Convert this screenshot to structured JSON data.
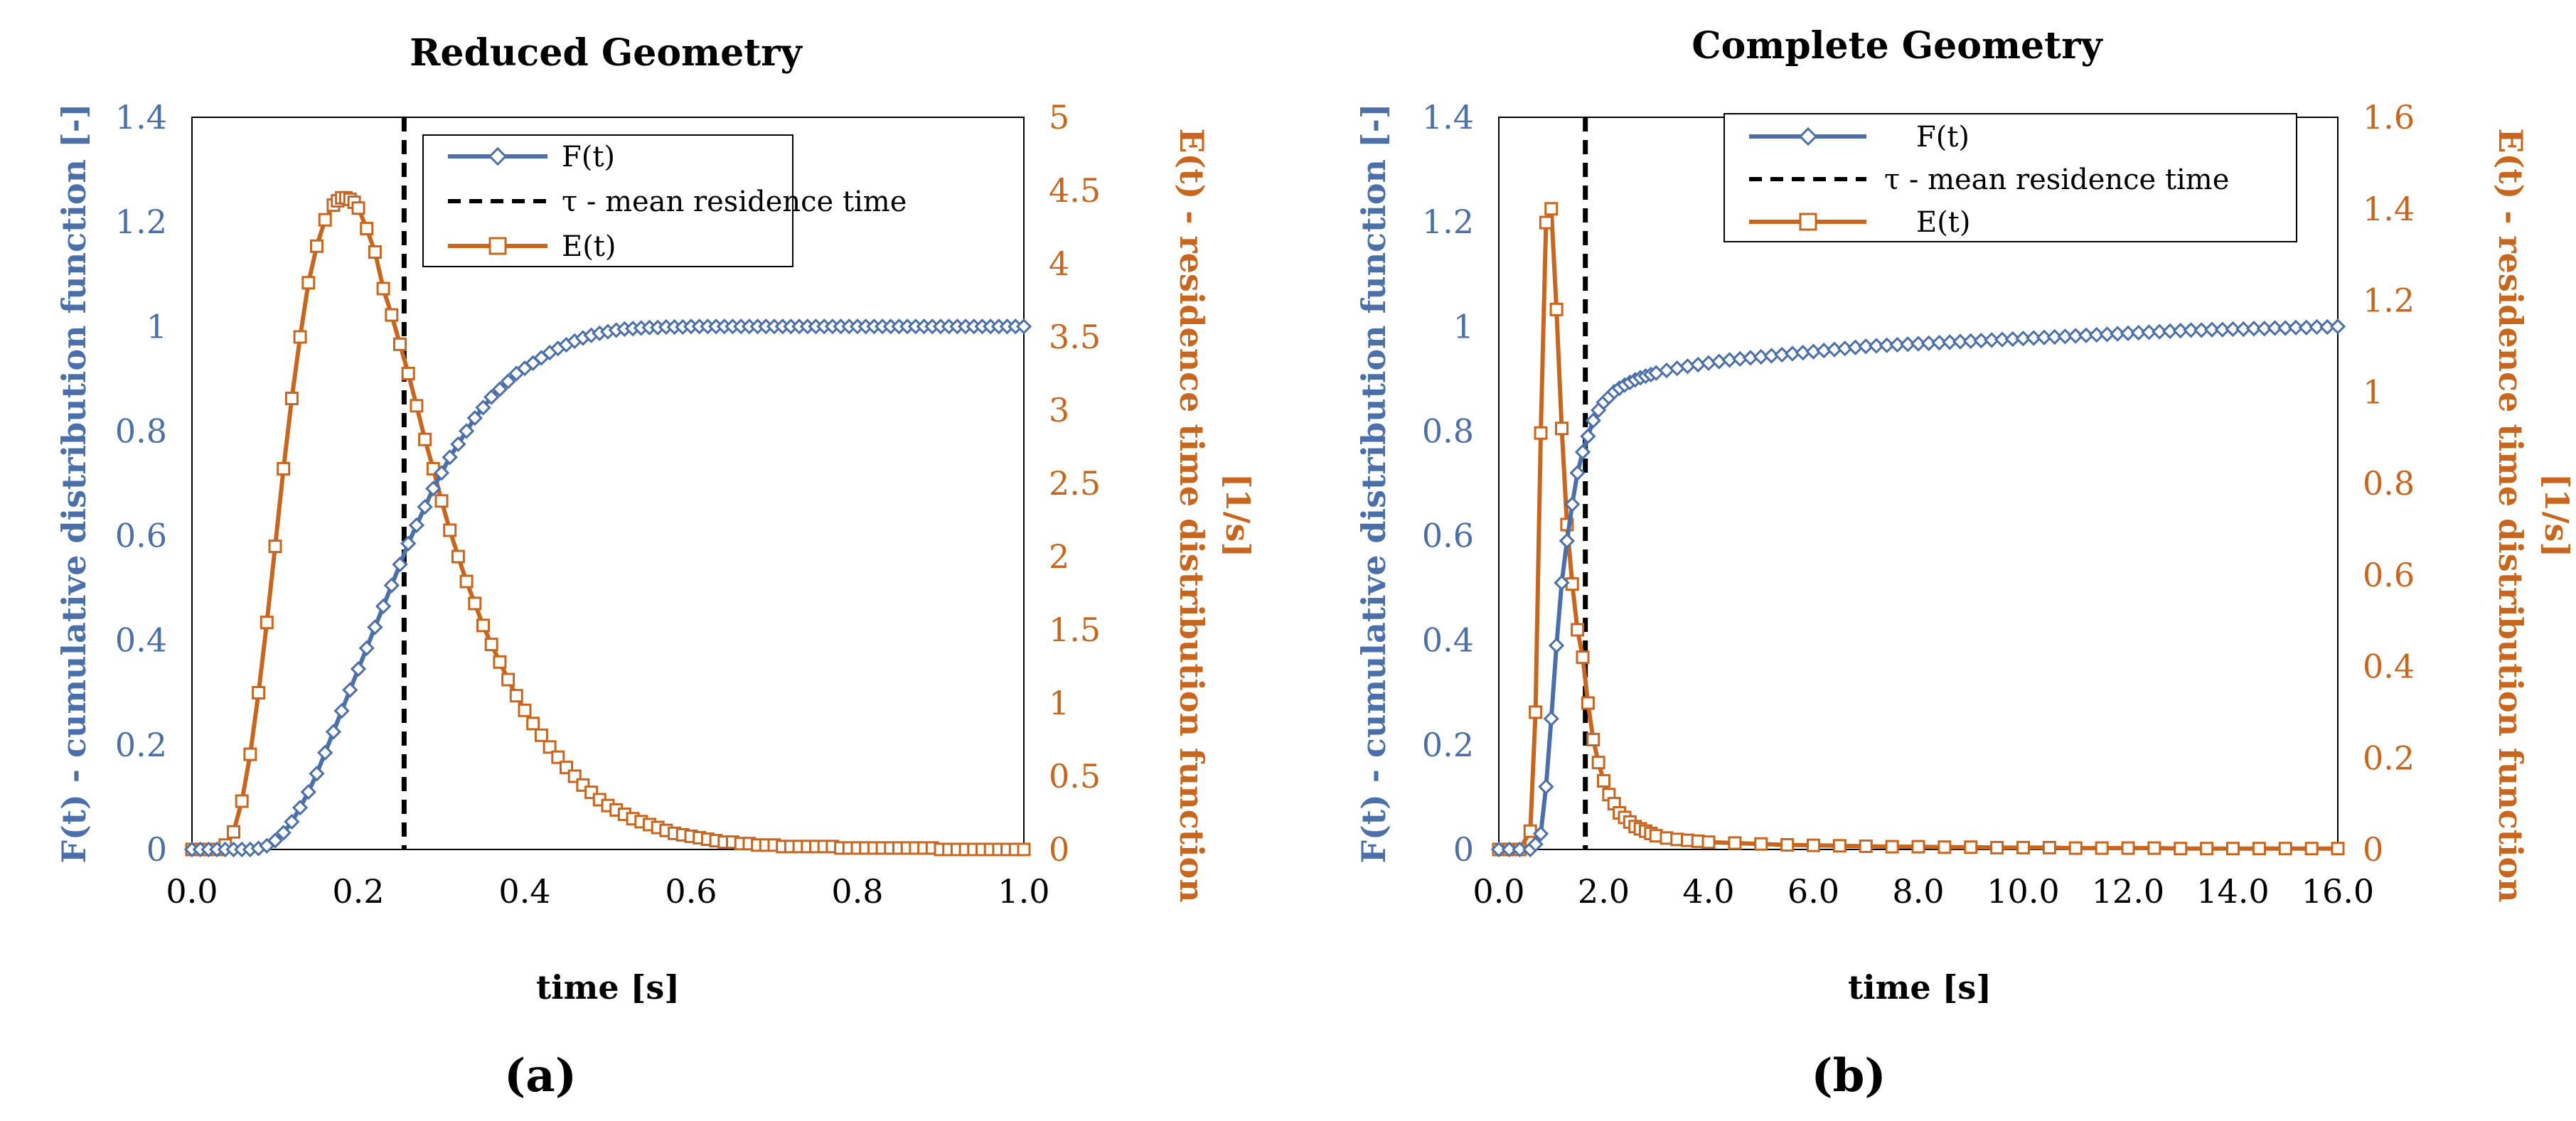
{
  "colors": {
    "f_series": "#4B6FA8",
    "e_series": "#C8661E",
    "tau_line": "#000000"
  },
  "chart_data": [
    {
      "type": "line",
      "panel_label": "(a)",
      "title": "Reduced Geometry",
      "xlabel": "time [s]",
      "ylabel_left": "F(t) - cumulative distribution function [-]",
      "ylabel_right_line1": "E(t) - residence time distribution function",
      "ylabel_right_line2": "[1/s]",
      "xlim": [
        0,
        1
      ],
      "ylim_left": [
        0,
        1.4
      ],
      "ylim_right": [
        0,
        5
      ],
      "xticks": [
        0,
        0.2,
        0.4,
        0.6,
        0.8,
        1.0
      ],
      "xtick_labels": [
        "0.0",
        "0.2",
        "0.4",
        "0.6",
        "0.8",
        "1.0"
      ],
      "yticks_left": [
        0,
        0.2,
        0.4,
        0.6,
        0.8,
        1,
        1.2,
        1.4
      ],
      "ytick_labels_left": [
        "0",
        "0.2",
        "0.4",
        "0.6",
        "0.8",
        "1",
        "1.2",
        "1.4"
      ],
      "yticks_right": [
        0,
        0.5,
        1,
        1.5,
        2,
        2.5,
        3,
        3.5,
        4,
        4.5,
        5
      ],
      "ytick_labels_right": [
        "0",
        "0.5",
        "1",
        "1.5",
        "2",
        "2.5",
        "3",
        "3.5",
        "4",
        "4.5",
        "5"
      ],
      "tau": 0.255,
      "legend": [
        "F(t)",
        "τ - mean residence time",
        "E(t)"
      ],
      "series": [
        {
          "name": "F(t)",
          "axis": "left",
          "x": [
            0.0,
            0.01,
            0.02,
            0.03,
            0.04,
            0.05,
            0.06,
            0.07,
            0.08,
            0.09,
            0.1,
            0.11,
            0.12,
            0.13,
            0.14,
            0.15,
            0.16,
            0.17,
            0.18,
            0.19,
            0.2,
            0.21,
            0.22,
            0.23,
            0.24,
            0.25,
            0.26,
            0.27,
            0.28,
            0.29,
            0.3,
            0.31,
            0.32,
            0.33,
            0.34,
            0.35,
            0.36,
            0.37,
            0.38,
            0.39,
            0.4,
            0.41,
            0.42,
            0.43,
            0.44,
            0.45,
            0.46,
            0.47,
            0.48,
            0.49,
            0.5,
            0.51,
            0.52,
            0.53,
            0.54,
            0.55,
            0.56,
            0.57,
            0.58,
            0.59,
            0.6,
            0.61,
            0.62,
            0.63,
            0.64,
            0.65,
            0.66,
            0.67,
            0.68,
            0.69,
            0.7,
            0.71,
            0.72,
            0.73,
            0.74,
            0.75,
            0.76,
            0.77,
            0.78,
            0.79,
            0.8,
            0.81,
            0.82,
            0.83,
            0.84,
            0.85,
            0.86,
            0.87,
            0.88,
            0.89,
            0.9,
            0.91,
            0.92,
            0.93,
            0.94,
            0.95,
            0.96,
            0.97,
            0.98,
            0.99,
            1.0
          ],
          "y": [
            0.0,
            0.0,
            0.0,
            0.0,
            0.0,
            0.0,
            0.0,
            0.0,
            0.002,
            0.007,
            0.017,
            0.032,
            0.053,
            0.08,
            0.11,
            0.145,
            0.185,
            0.225,
            0.265,
            0.305,
            0.345,
            0.385,
            0.425,
            0.465,
            0.505,
            0.545,
            0.585,
            0.62,
            0.655,
            0.69,
            0.72,
            0.75,
            0.775,
            0.8,
            0.825,
            0.845,
            0.865,
            0.88,
            0.895,
            0.91,
            0.92,
            0.93,
            0.94,
            0.95,
            0.958,
            0.965,
            0.972,
            0.978,
            0.983,
            0.987,
            0.99,
            0.993,
            0.995,
            0.996,
            0.997,
            0.998,
            0.998,
            0.999,
            0.999,
            0.999,
            1.0,
            1.0,
            1.0,
            1.0,
            1.0,
            1.0,
            1.0,
            1.0,
            1.0,
            1.0,
            1.0,
            1.0,
            1.0,
            1.0,
            1.0,
            1.0,
            1.0,
            1.0,
            1.0,
            1.0,
            1.0,
            1.0,
            1.0,
            1.0,
            1.0,
            1.0,
            1.0,
            1.0,
            1.0,
            1.0,
            1.0,
            1.0,
            1.0,
            1.0,
            1.0,
            1.0,
            1.0,
            1.0,
            1.0,
            1.0,
            1.0
          ]
        },
        {
          "name": "E(t)",
          "axis": "right",
          "x": [
            0.0,
            0.01,
            0.02,
            0.03,
            0.04,
            0.05,
            0.06,
            0.07,
            0.08,
            0.09,
            0.1,
            0.11,
            0.12,
            0.13,
            0.14,
            0.15,
            0.16,
            0.17,
            0.175,
            0.18,
            0.185,
            0.19,
            0.195,
            0.2,
            0.21,
            0.22,
            0.23,
            0.24,
            0.25,
            0.26,
            0.27,
            0.28,
            0.29,
            0.3,
            0.31,
            0.32,
            0.33,
            0.34,
            0.35,
            0.36,
            0.37,
            0.38,
            0.39,
            0.4,
            0.41,
            0.42,
            0.43,
            0.44,
            0.45,
            0.46,
            0.47,
            0.48,
            0.49,
            0.5,
            0.51,
            0.52,
            0.53,
            0.54,
            0.55,
            0.56,
            0.57,
            0.58,
            0.59,
            0.6,
            0.61,
            0.62,
            0.63,
            0.64,
            0.65,
            0.66,
            0.67,
            0.68,
            0.69,
            0.7,
            0.71,
            0.72,
            0.73,
            0.74,
            0.75,
            0.76,
            0.77,
            0.78,
            0.79,
            0.8,
            0.81,
            0.82,
            0.83,
            0.84,
            0.85,
            0.86,
            0.87,
            0.88,
            0.89,
            0.9,
            0.91,
            0.92,
            0.93,
            0.94,
            0.95,
            0.96,
            0.97,
            0.98,
            0.99,
            1.0
          ],
          "y": [
            0.0,
            0.0,
            0.0,
            0.0,
            0.03,
            0.12,
            0.33,
            0.65,
            1.07,
            1.55,
            2.07,
            2.6,
            3.08,
            3.5,
            3.87,
            4.12,
            4.3,
            4.4,
            4.43,
            4.45,
            4.45,
            4.44,
            4.42,
            4.38,
            4.24,
            4.08,
            3.83,
            3.65,
            3.45,
            3.25,
            3.03,
            2.8,
            2.6,
            2.38,
            2.18,
            2.0,
            1.83,
            1.68,
            1.53,
            1.4,
            1.28,
            1.16,
            1.05,
            0.95,
            0.86,
            0.78,
            0.7,
            0.63,
            0.56,
            0.5,
            0.44,
            0.39,
            0.34,
            0.3,
            0.27,
            0.24,
            0.21,
            0.19,
            0.17,
            0.15,
            0.13,
            0.11,
            0.1,
            0.09,
            0.08,
            0.07,
            0.06,
            0.05,
            0.05,
            0.04,
            0.04,
            0.03,
            0.03,
            0.03,
            0.02,
            0.02,
            0.02,
            0.02,
            0.02,
            0.02,
            0.02,
            0.01,
            0.01,
            0.01,
            0.01,
            0.01,
            0.01,
            0.01,
            0.01,
            0.01,
            0.01,
            0.01,
            0.01,
            0.0,
            0.0,
            0.0,
            0.0,
            0.0,
            0.0,
            0.0,
            0.0,
            0.0,
            0.0,
            0.0
          ]
        }
      ]
    },
    {
      "type": "line",
      "panel_label": "(b)",
      "title": "Complete Geometry",
      "xlabel": "time [s]",
      "ylabel_left": "F(t) - cumulative distribution function [-]",
      "ylabel_right_line1": "E(t) - residence time distribution function",
      "ylabel_right_line2": "[1/s]",
      "xlim": [
        0,
        16
      ],
      "ylim_left": [
        0,
        1.4
      ],
      "ylim_right": [
        0,
        1.6
      ],
      "xticks": [
        0,
        2,
        4,
        6,
        8,
        10,
        12,
        14,
        16
      ],
      "xtick_labels": [
        "0.0",
        "2.0",
        "4.0",
        "6.0",
        "8.0",
        "10.0",
        "12.0",
        "14.0",
        "16.0"
      ],
      "yticks_left": [
        0,
        0.2,
        0.4,
        0.6,
        0.8,
        1,
        1.2,
        1.4
      ],
      "ytick_labels_left": [
        "0",
        "0.2",
        "0.4",
        "0.6",
        "0.8",
        "1",
        "1.2",
        "1.4"
      ],
      "yticks_right": [
        0,
        0.2,
        0.4,
        0.6,
        0.8,
        1,
        1.2,
        1.4,
        1.6
      ],
      "ytick_labels_right": [
        "0",
        "0.2",
        "0.4",
        "0.6",
        "0.8",
        "1",
        "1.2",
        "1.4",
        "1.6"
      ],
      "tau": 1.65,
      "legend": [
        "F(t)",
        "τ - mean residence time",
        "E(t)"
      ],
      "series": [
        {
          "name": "F(t)",
          "axis": "left",
          "x": [
            0.0,
            0.2,
            0.4,
            0.6,
            0.7,
            0.8,
            0.9,
            1.0,
            1.1,
            1.2,
            1.3,
            1.4,
            1.5,
            1.6,
            1.7,
            1.8,
            1.9,
            2.0,
            2.1,
            2.2,
            2.3,
            2.4,
            2.5,
            2.6,
            2.7,
            2.8,
            2.9,
            3.0,
            3.2,
            3.4,
            3.6,
            3.8,
            4.0,
            4.2,
            4.4,
            4.6,
            4.8,
            5.0,
            5.2,
            5.4,
            5.6,
            5.8,
            6.0,
            6.2,
            6.4,
            6.6,
            6.8,
            7.0,
            7.2,
            7.4,
            7.6,
            7.8,
            8.0,
            8.2,
            8.4,
            8.6,
            8.8,
            9.0,
            9.2,
            9.4,
            9.6,
            9.8,
            10.0,
            10.2,
            10.4,
            10.6,
            10.8,
            11.0,
            11.2,
            11.4,
            11.6,
            11.8,
            12.0,
            12.2,
            12.4,
            12.6,
            12.8,
            13.0,
            13.2,
            13.4,
            13.6,
            13.8,
            14.0,
            14.2,
            14.4,
            14.6,
            14.8,
            15.0,
            15.2,
            15.4,
            15.6,
            15.8,
            16.0
          ],
          "y": [
            0.0,
            0.0,
            0.0,
            0.0,
            0.01,
            0.03,
            0.12,
            0.25,
            0.39,
            0.51,
            0.59,
            0.66,
            0.72,
            0.76,
            0.79,
            0.82,
            0.84,
            0.855,
            0.865,
            0.875,
            0.882,
            0.888,
            0.893,
            0.898,
            0.902,
            0.905,
            0.908,
            0.911,
            0.916,
            0.92,
            0.924,
            0.927,
            0.93,
            0.933,
            0.936,
            0.938,
            0.94,
            0.942,
            0.944,
            0.946,
            0.948,
            0.95,
            0.952,
            0.954,
            0.956,
            0.958,
            0.96,
            0.962,
            0.963,
            0.964,
            0.965,
            0.966,
            0.967,
            0.968,
            0.969,
            0.97,
            0.971,
            0.972,
            0.973,
            0.974,
            0.975,
            0.976,
            0.977,
            0.978,
            0.979,
            0.98,
            0.981,
            0.982,
            0.983,
            0.984,
            0.985,
            0.986,
            0.987,
            0.988,
            0.989,
            0.99,
            0.991,
            0.992,
            0.993,
            0.993,
            0.994,
            0.994,
            0.995,
            0.995,
            0.996,
            0.996,
            0.997,
            0.997,
            0.998,
            0.998,
            0.999,
            0.999,
            1.0
          ]
        },
        {
          "name": "E(t)",
          "axis": "right",
          "x": [
            0.0,
            0.2,
            0.4,
            0.6,
            0.7,
            0.8,
            0.9,
            1.0,
            1.1,
            1.2,
            1.3,
            1.4,
            1.5,
            1.6,
            1.7,
            1.8,
            1.9,
            2.0,
            2.1,
            2.2,
            2.3,
            2.4,
            2.5,
            2.6,
            2.7,
            2.8,
            2.9,
            3.0,
            3.2,
            3.4,
            3.6,
            3.8,
            4.0,
            4.5,
            5.0,
            5.5,
            6.0,
            6.5,
            7.0,
            7.5,
            8.0,
            8.5,
            9.0,
            9.5,
            10.0,
            10.5,
            11.0,
            11.5,
            12.0,
            12.5,
            13.0,
            13.5,
            14.0,
            14.5,
            15.0,
            15.5,
            16.0
          ],
          "y": [
            0.0,
            0.0,
            0.0,
            0.04,
            0.3,
            0.91,
            1.37,
            1.4,
            1.18,
            0.92,
            0.71,
            0.58,
            0.48,
            0.42,
            0.32,
            0.24,
            0.19,
            0.15,
            0.12,
            0.1,
            0.08,
            0.07,
            0.06,
            0.05,
            0.045,
            0.04,
            0.035,
            0.03,
            0.025,
            0.022,
            0.02,
            0.018,
            0.016,
            0.014,
            0.012,
            0.01,
            0.009,
            0.008,
            0.007,
            0.006,
            0.006,
            0.005,
            0.005,
            0.004,
            0.004,
            0.004,
            0.003,
            0.003,
            0.003,
            0.003,
            0.002,
            0.002,
            0.002,
            0.002,
            0.002,
            0.002,
            0.002
          ]
        }
      ]
    }
  ]
}
